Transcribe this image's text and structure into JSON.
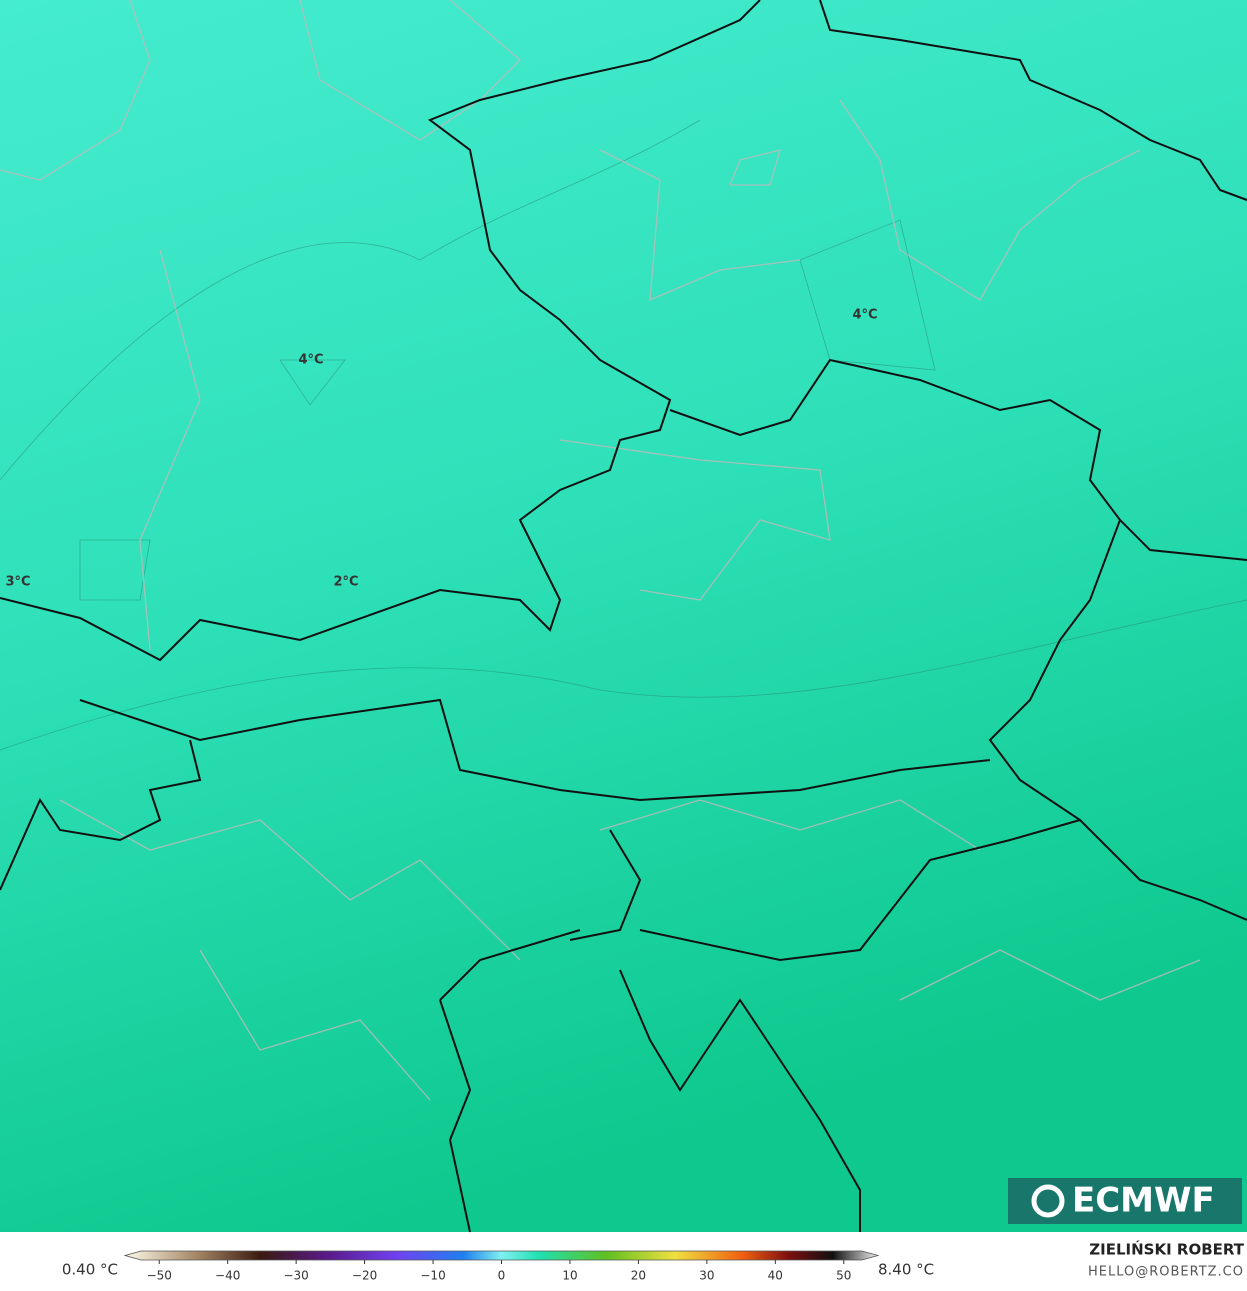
{
  "map": {
    "contour_labels": [
      "4°C",
      "4°C",
      "2°C",
      "3°C"
    ],
    "logo": "ECMWF"
  },
  "legend": {
    "min_label": "0.40 °C",
    "max_label": "8.40 °C",
    "lim": [
      -55,
      55
    ],
    "ticks": [
      {
        "value": -50,
        "label": "−50"
      },
      {
        "value": -40,
        "label": "−40"
      },
      {
        "value": -30,
        "label": "−30"
      },
      {
        "value": -20,
        "label": "−20"
      },
      {
        "value": -10,
        "label": "−10"
      },
      0,
      10,
      20,
      30,
      40,
      50
    ]
  },
  "footer": {
    "author": "ZIELIŃSKI ROBERT",
    "contact": "HELLO@ROBERTZ.CO"
  }
}
